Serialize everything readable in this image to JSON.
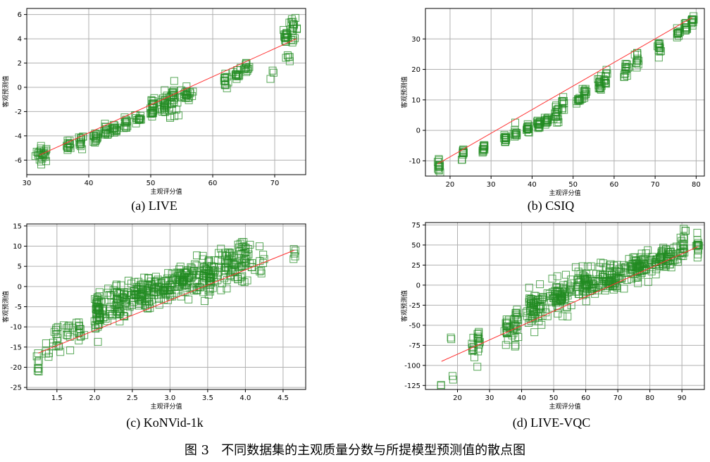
{
  "figure_caption": "图 3   不同数据集的主观质量分数与所提模型预测值的散点图",
  "colors": {
    "marker": "#228B22",
    "fit_line": "#ff3030",
    "grid": "#b0b0b0"
  },
  "chart_data": [
    {
      "type": "scatter",
      "subcaption": "(a) LIVE",
      "xlabel": "主观评分值",
      "ylabel": "客观预测值",
      "xlim": [
        30,
        75
      ],
      "ylim": [
        -7.2,
        6.5
      ],
      "xticks": [
        30,
        40,
        50,
        60,
        70
      ],
      "yticks": [
        -6,
        -4,
        -2,
        0,
        2,
        4,
        6
      ],
      "fit_line": [
        [
          32,
          -5.6
        ],
        [
          73.5,
          4.0
        ]
      ],
      "clusters": [
        {
          "x": 32.5,
          "y": -5.5,
          "n": 26,
          "sx": 0.9,
          "sy": 0.55
        },
        {
          "x": 36.8,
          "y": -4.8,
          "n": 14,
          "sx": 0.3,
          "sy": 0.45
        },
        {
          "x": 38.8,
          "y": -4.5,
          "n": 14,
          "sx": 0.3,
          "sy": 0.5
        },
        {
          "x": 41.0,
          "y": -4.2,
          "n": 16,
          "sx": 0.4,
          "sy": 0.4
        },
        {
          "x": 42.8,
          "y": -3.6,
          "n": 14,
          "sx": 0.5,
          "sy": 0.4
        },
        {
          "x": 44.2,
          "y": -3.5,
          "n": 14,
          "sx": 0.4,
          "sy": 0.35
        },
        {
          "x": 46.0,
          "y": -3.0,
          "n": 12,
          "sx": 0.3,
          "sy": 0.4
        },
        {
          "x": 48.0,
          "y": -2.6,
          "n": 14,
          "sx": 0.4,
          "sy": 0.45
        },
        {
          "x": 50.2,
          "y": -1.6,
          "n": 24,
          "sx": 0.4,
          "sy": 0.8
        },
        {
          "x": 52.2,
          "y": -1.4,
          "n": 24,
          "sx": 0.5,
          "sy": 0.8
        },
        {
          "x": 53.5,
          "y": -1.0,
          "n": 26,
          "sx": 0.6,
          "sy": 1.1
        },
        {
          "x": 55.8,
          "y": -0.6,
          "n": 22,
          "sx": 0.8,
          "sy": 0.5
        },
        {
          "x": 62.0,
          "y": 0.5,
          "n": 14,
          "sx": 0.3,
          "sy": 0.6
        },
        {
          "x": 64.0,
          "y": 1.2,
          "n": 14,
          "sx": 0.4,
          "sy": 0.4
        },
        {
          "x": 65.5,
          "y": 1.6,
          "n": 12,
          "sx": 0.4,
          "sy": 0.4
        },
        {
          "x": 69.5,
          "y": 1.1,
          "n": 3,
          "sx": 0.3,
          "sy": 0.2
        },
        {
          "x": 71.8,
          "y": 4.2,
          "n": 16,
          "sx": 0.4,
          "sy": 0.6
        },
        {
          "x": 73.0,
          "y": 4.8,
          "n": 20,
          "sx": 0.6,
          "sy": 0.7
        },
        {
          "x": 72.2,
          "y": 2.5,
          "n": 5,
          "sx": 0.4,
          "sy": 0.4
        }
      ]
    },
    {
      "type": "scatter",
      "subcaption": "(b) CSIQ",
      "xlabel": "主观评分值",
      "ylabel": "客观预测值",
      "xlim": [
        14,
        82
      ],
      "ylim": [
        -15,
        40
      ],
      "xticks": [
        20,
        30,
        40,
        50,
        60,
        70,
        80
      ],
      "yticks": [
        -10,
        0,
        10,
        20,
        30
      ],
      "fit_line": [
        [
          17,
          -11
        ],
        [
          79,
          37
        ]
      ],
      "clusters": [
        {
          "x": 17.2,
          "y": -11.5,
          "n": 14,
          "sx": 0.3,
          "sy": 1.5
        },
        {
          "x": 23.2,
          "y": -8.0,
          "n": 12,
          "sx": 0.3,
          "sy": 1.5
        },
        {
          "x": 28.2,
          "y": -6.0,
          "n": 12,
          "sx": 0.3,
          "sy": 1.8
        },
        {
          "x": 33.5,
          "y": -2.5,
          "n": 16,
          "sx": 0.3,
          "sy": 2.0
        },
        {
          "x": 36.0,
          "y": -1.0,
          "n": 12,
          "sx": 0.4,
          "sy": 1.8
        },
        {
          "x": 39.0,
          "y": 0.5,
          "n": 14,
          "sx": 0.5,
          "sy": 1.2
        },
        {
          "x": 41.5,
          "y": 1.5,
          "n": 16,
          "sx": 0.5,
          "sy": 1.5
        },
        {
          "x": 43.5,
          "y": 3.0,
          "n": 14,
          "sx": 0.5,
          "sy": 1.3
        },
        {
          "x": 46.0,
          "y": 5.0,
          "n": 18,
          "sx": 0.5,
          "sy": 2.5
        },
        {
          "x": 47.5,
          "y": 8.0,
          "n": 10,
          "sx": 0.5,
          "sy": 2.0
        },
        {
          "x": 51.5,
          "y": 10.0,
          "n": 12,
          "sx": 0.5,
          "sy": 0.8
        },
        {
          "x": 53.0,
          "y": 12.5,
          "n": 12,
          "sx": 0.4,
          "sy": 1.8
        },
        {
          "x": 56.5,
          "y": 15.5,
          "n": 16,
          "sx": 0.5,
          "sy": 2.0
        },
        {
          "x": 58.0,
          "y": 17.0,
          "n": 12,
          "sx": 0.4,
          "sy": 2.0
        },
        {
          "x": 63.0,
          "y": 20.0,
          "n": 16,
          "sx": 0.6,
          "sy": 2.0
        },
        {
          "x": 65.5,
          "y": 23.5,
          "n": 12,
          "sx": 0.6,
          "sy": 2.0
        },
        {
          "x": 71.0,
          "y": 27.5,
          "n": 14,
          "sx": 0.3,
          "sy": 1.5
        },
        {
          "x": 75.5,
          "y": 31.5,
          "n": 12,
          "sx": 0.3,
          "sy": 1.5
        },
        {
          "x": 77.5,
          "y": 34.0,
          "n": 12,
          "sx": 0.3,
          "sy": 1.2
        },
        {
          "x": 79.0,
          "y": 36.0,
          "n": 12,
          "sx": 0.3,
          "sy": 1.2
        }
      ]
    },
    {
      "type": "scatter",
      "subcaption": "(c) KoNVid-1k",
      "xlabel": "主观评分值",
      "ylabel": "客观预测值",
      "xlim": [
        1.1,
        4.8
      ],
      "ylim": [
        -25.5,
        15.5
      ],
      "xticks": [
        1.5,
        2.0,
        2.5,
        3.0,
        3.5,
        4.0,
        4.5
      ],
      "yticks": [
        -25,
        -20,
        -15,
        -10,
        -5,
        0,
        5,
        10,
        15
      ],
      "xtick_labels": [
        "1.5",
        "2.0",
        "2.5",
        "3.0",
        "3.5",
        "4.0",
        "4.5"
      ],
      "fit_line": [
        [
          1.25,
          -16.5
        ],
        [
          4.65,
          9.0
        ]
      ],
      "clusters": [
        {
          "x": 1.25,
          "y": -19.0,
          "n": 8,
          "sx": 0.03,
          "sy": 3.0
        },
        {
          "x": 1.35,
          "y": -17.0,
          "n": 5,
          "sx": 0.05,
          "sy": 3.0
        },
        {
          "x": 1.5,
          "y": -14.0,
          "n": 14,
          "sx": 0.04,
          "sy": 4.0
        },
        {
          "x": 1.65,
          "y": -12.0,
          "n": 10,
          "sx": 0.06,
          "sy": 3.5
        },
        {
          "x": 1.8,
          "y": -11.0,
          "n": 14,
          "sx": 0.06,
          "sy": 4.0
        },
        {
          "x": 2.05,
          "y": -6.0,
          "n": 50,
          "sx": 0.05,
          "sy": 4.5
        },
        {
          "x": 2.3,
          "y": -4.0,
          "n": 70,
          "sx": 0.15,
          "sy": 4.0
        },
        {
          "x": 2.6,
          "y": -2.0,
          "n": 70,
          "sx": 0.15,
          "sy": 3.0
        },
        {
          "x": 2.9,
          "y": -0.5,
          "n": 60,
          "sx": 0.15,
          "sy": 3.0
        },
        {
          "x": 3.2,
          "y": 1.5,
          "n": 70,
          "sx": 0.15,
          "sy": 3.0
        },
        {
          "x": 3.5,
          "y": 3.0,
          "n": 70,
          "sx": 0.15,
          "sy": 3.5
        },
        {
          "x": 3.8,
          "y": 5.0,
          "n": 50,
          "sx": 0.15,
          "sy": 3.5
        },
        {
          "x": 4.0,
          "y": 7.0,
          "n": 40,
          "sx": 0.08,
          "sy": 4.5
        },
        {
          "x": 4.2,
          "y": 6.0,
          "n": 8,
          "sx": 0.05,
          "sy": 3.0
        },
        {
          "x": 4.65,
          "y": 7.0,
          "n": 5,
          "sx": 0.02,
          "sy": 2.0
        }
      ]
    },
    {
      "type": "scatter",
      "subcaption": "(d) LIVE-VQC",
      "xlabel": "主观评分值",
      "ylabel": "客观预测值",
      "xlim": [
        10,
        97
      ],
      "ylim": [
        -130,
        78
      ],
      "xticks": [
        20,
        30,
        40,
        50,
        60,
        70,
        80,
        90
      ],
      "yticks": [
        -125,
        -100,
        -75,
        -50,
        -25,
        0,
        25,
        50,
        75
      ],
      "fit_line": [
        [
          15,
          -95
        ],
        [
          95,
          48
        ]
      ],
      "clusters": [
        {
          "x": 15.0,
          "y": -124.0,
          "n": 2,
          "sx": 0.3,
          "sy": 1.5
        },
        {
          "x": 18.5,
          "y": -116.0,
          "n": 2,
          "sx": 0.3,
          "sy": 3.0
        },
        {
          "x": 18.0,
          "y": -66.0,
          "n": 2,
          "sx": 0.3,
          "sy": 2.0
        },
        {
          "x": 25.0,
          "y": -80.0,
          "n": 8,
          "sx": 0.5,
          "sy": 10.0
        },
        {
          "x": 26.5,
          "y": -70.0,
          "n": 14,
          "sx": 0.4,
          "sy": 18.0
        },
        {
          "x": 35.5,
          "y": -55.0,
          "n": 20,
          "sx": 0.6,
          "sy": 15.0
        },
        {
          "x": 38.0,
          "y": -48.0,
          "n": 24,
          "sx": 0.8,
          "sy": 20.0
        },
        {
          "x": 44.0,
          "y": -30.0,
          "n": 60,
          "sx": 2.5,
          "sy": 20.0
        },
        {
          "x": 52.0,
          "y": -15.0,
          "n": 70,
          "sx": 3.5,
          "sy": 16.0
        },
        {
          "x": 60.0,
          "y": 0.0,
          "n": 70,
          "sx": 3.5,
          "sy": 15.0
        },
        {
          "x": 68.0,
          "y": 12.0,
          "n": 70,
          "sx": 3.5,
          "sy": 15.0
        },
        {
          "x": 76.0,
          "y": 22.0,
          "n": 70,
          "sx": 3.5,
          "sy": 14.0
        },
        {
          "x": 84.0,
          "y": 32.0,
          "n": 60,
          "sx": 3.0,
          "sy": 12.0
        },
        {
          "x": 90.0,
          "y": 45.0,
          "n": 20,
          "sx": 1.5,
          "sy": 15.0
        },
        {
          "x": 95.0,
          "y": 50.0,
          "n": 14,
          "sx": 0.4,
          "sy": 12.0
        },
        {
          "x": 91.0,
          "y": 68.0,
          "n": 3,
          "sx": 0.3,
          "sy": 2.0
        }
      ]
    }
  ]
}
